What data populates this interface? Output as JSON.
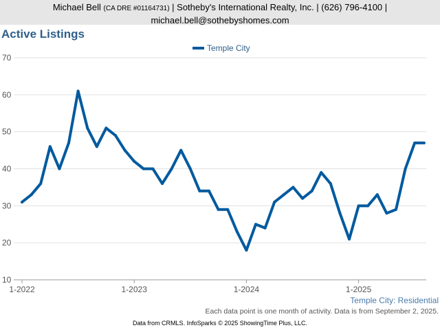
{
  "header": {
    "name": "Michael Bell",
    "license": "(CA DRE #01164731)",
    "company_line": "| Sotheby's International Realty, Inc. | (626) 796-4100 |",
    "email": "michael.bell@sothebyshomes.com"
  },
  "chart_title": "Active Listings",
  "legend_label": "Temple City",
  "subtitle": "Temple City: Residential",
  "note": "Each data point is one month of activity. Data is from September 2, 2025.",
  "footer": "Data from CRMLS. InfoSparks © 2025 ShowingTime Plus, LLC.",
  "colors": {
    "series": "#005a9e",
    "title": "#2f5f8a",
    "header_bg": "#e6e6e6"
  },
  "chart_data": {
    "type": "line",
    "title": "Active Listings",
    "series": [
      {
        "name": "Temple City",
        "values": [
          31,
          33,
          36,
          46,
          40,
          47,
          61,
          51,
          46,
          51,
          49,
          45,
          42,
          40,
          40,
          36,
          40,
          45,
          40,
          34,
          34,
          29,
          29,
          23,
          18,
          25,
          24,
          31,
          33,
          35,
          32,
          34,
          39,
          36,
          28,
          21,
          30,
          30,
          33,
          28,
          29,
          40,
          47,
          47
        ]
      }
    ],
    "x_start": "1-2022",
    "x_interval": "1 month",
    "x_tick_labels": [
      "1-2022",
      "1-2023",
      "1-2024",
      "1-2025"
    ],
    "y_ticks": [
      10,
      20,
      30,
      40,
      50,
      60,
      70
    ],
    "ylim": [
      10,
      70
    ],
    "grid": "horizontal",
    "legend_position": "top"
  }
}
